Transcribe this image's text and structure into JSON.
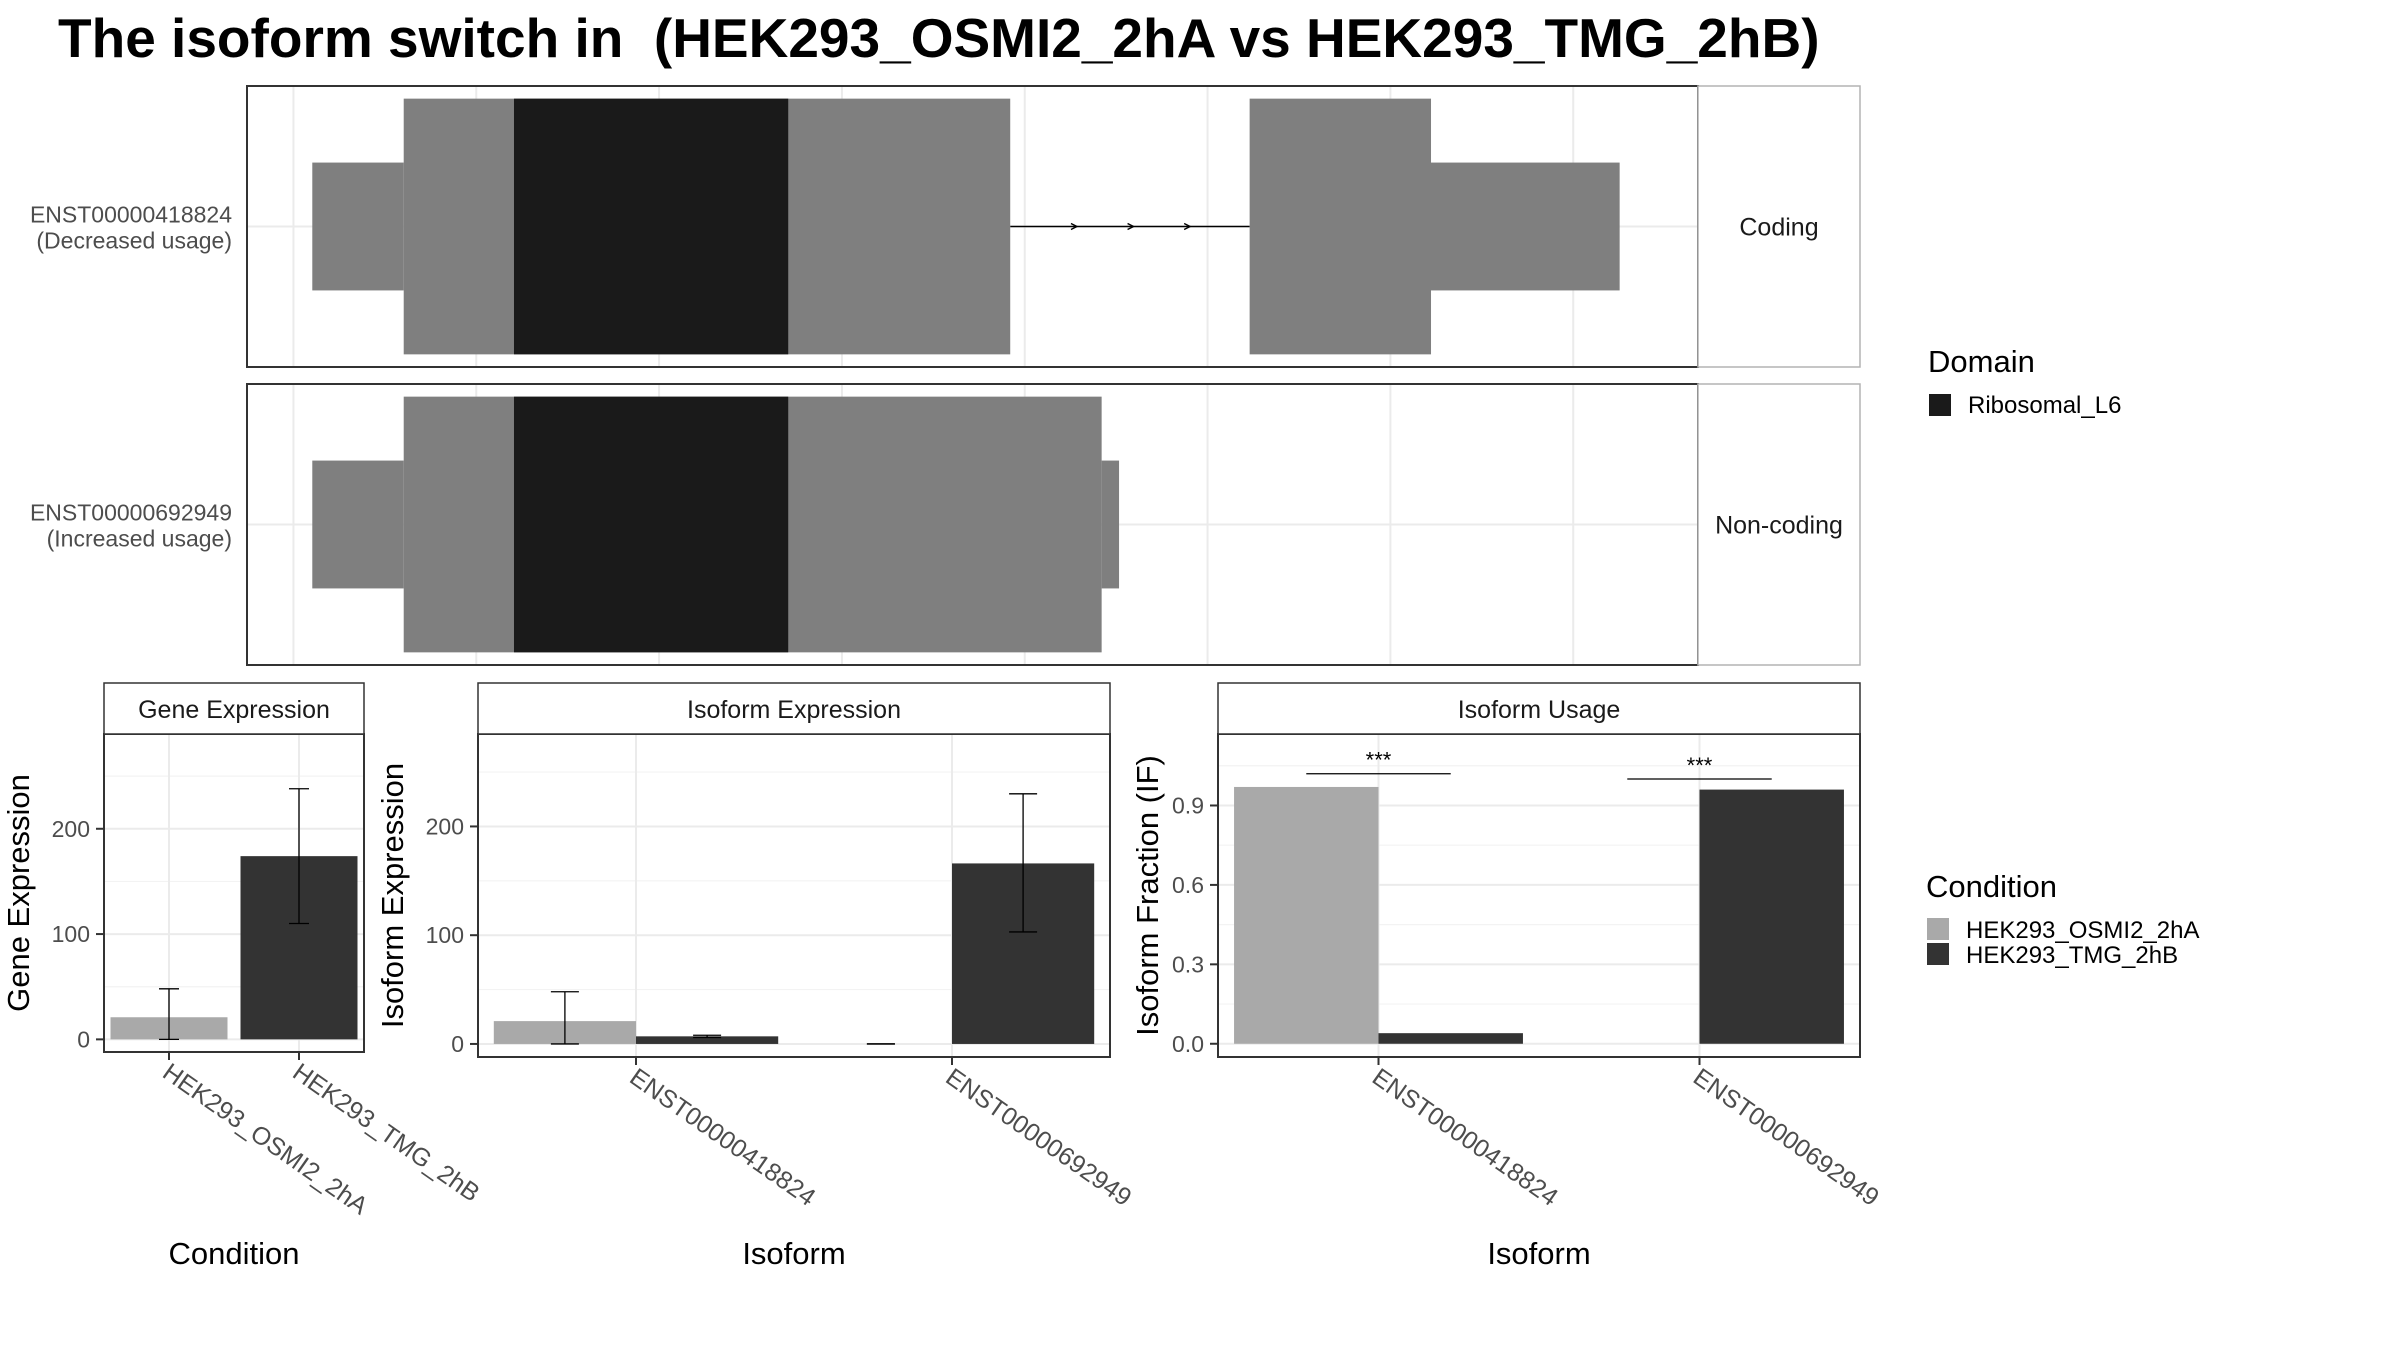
{
  "title": "The isoform switch in  (HEK293_OSMI2_2hA vs HEK293_TMG_2hB)",
  "colors": {
    "exon": "#7f7f7f",
    "domain": "#1a1a1a",
    "cond_a": "#a9a9a9",
    "cond_b": "#333333",
    "grid": "#ebebeb",
    "border": "#333333",
    "strip_border": "#b3b3b3"
  },
  "structure": {
    "x_range": [
      0,
      100
    ],
    "transcripts": [
      {
        "id": "ENST00000418824",
        "label": "ENST00000418824",
        "usage": "(Decreased usage)",
        "facet": "Coding",
        "utr_segments": [
          [
            4.5,
            10.8
          ],
          [
            80.2,
            94.6
          ]
        ],
        "cds_segments": [
          [
            10.8,
            52.6
          ],
          [
            69.1,
            81.6
          ]
        ],
        "domain_segments": [
          {
            "name": "Ribosomal_L6",
            "range": [
              18.4,
              37.3
            ]
          }
        ],
        "intron": [
          52.6,
          69.1
        ],
        "intron_arrows": [
          57.2,
          61.1,
          65.0
        ]
      },
      {
        "id": "ENST00000692949",
        "label": "ENST00000692949",
        "usage": "(Increased usage)",
        "facet": "Non-coding",
        "utr_segments": [
          [
            4.5,
            10.8
          ],
          [
            58.9,
            60.1
          ]
        ],
        "cds_segments": [
          [
            10.8,
            58.9
          ]
        ],
        "domain_segments": [
          {
            "name": "Ribosomal_L6",
            "range": [
              18.4,
              37.3
            ]
          }
        ],
        "intron": null,
        "intron_arrows": []
      }
    ]
  },
  "legends": {
    "domain": {
      "title": "Domain",
      "items": [
        {
          "label": "Ribosomal_L6",
          "color": "#1a1a1a"
        }
      ]
    },
    "condition": {
      "title": "Condition",
      "items": [
        {
          "label": "HEK293_OSMI2_2hA",
          "color": "#a9a9a9"
        },
        {
          "label": "HEK293_TMG_2hB",
          "color": "#333333"
        }
      ]
    }
  },
  "chart_data": [
    {
      "type": "bar",
      "title": "Gene Expression",
      "xlabel": "Condition",
      "ylabel": "Gene Expression",
      "ylim": [
        -12,
        290
      ],
      "yticks": [
        0,
        100,
        200
      ],
      "categories": [
        "HEK293_OSMI2_2hA",
        "HEK293_TMG_2hB"
      ],
      "series": [
        {
          "values": [
            21,
            174
          ],
          "errors": [
            [
              0,
              48
            ],
            [
              110,
              238
            ]
          ]
        }
      ]
    },
    {
      "type": "bar",
      "title": "Isoform Expression",
      "xlabel": "Isoform",
      "ylabel": "Isoform Expression",
      "ylim": [
        -12,
        285
      ],
      "yticks": [
        0,
        100,
        200
      ],
      "categories": [
        "ENST00000418824",
        "ENST00000692949"
      ],
      "series": [
        {
          "name": "HEK293_OSMI2_2hA",
          "values": [
            21,
            0
          ],
          "errors": [
            [
              0,
              48
            ],
            [
              0,
              0
            ]
          ]
        },
        {
          "name": "HEK293_TMG_2hB",
          "values": [
            7,
            166
          ],
          "errors": [
            [
              6,
              8
            ],
            [
              103,
              230
            ]
          ]
        }
      ]
    },
    {
      "type": "bar",
      "title": "Isoform Usage",
      "xlabel": "Isoform",
      "ylabel": "Isoform Fraction (IF)",
      "ylim": [
        -0.05,
        1.17
      ],
      "yticks": [
        0.0,
        0.3,
        0.6,
        0.9
      ],
      "categories": [
        "ENST00000418824",
        "ENST00000692949"
      ],
      "series": [
        {
          "name": "HEK293_OSMI2_2hA",
          "values": [
            0.97,
            0.0
          ]
        },
        {
          "name": "HEK293_TMG_2hB",
          "values": [
            0.04,
            0.96
          ]
        }
      ],
      "significance": [
        {
          "label": "***",
          "y": 1.02
        },
        {
          "label": "***",
          "y": 1.0
        }
      ]
    }
  ]
}
